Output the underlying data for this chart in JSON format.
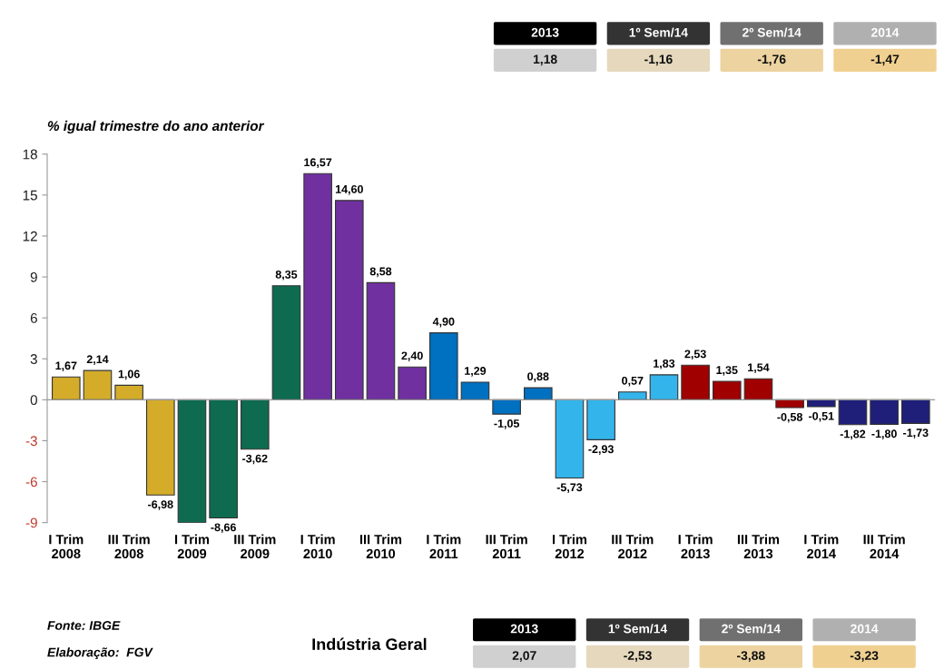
{
  "chart_data": {
    "type": "bar",
    "title": "Indústria Geral",
    "subtitle": "% igual trimestre do ano anterior",
    "categories": [
      "I Trim\n2008",
      null,
      "III Trim\n2008",
      null,
      "I Trim\n2009",
      null,
      "III Trim\n2009",
      null,
      "I Trim\n2010",
      null,
      "III Trim\n2010",
      null,
      "I Trim\n2011",
      null,
      "III Trim\n2011",
      null,
      "I Trim\n2012",
      null,
      "III Trim\n2012",
      null,
      "I Trim\n2013",
      null,
      "III Trim\n2013",
      null,
      "I Trim\n2014",
      null,
      "III Trim\n2014",
      null
    ],
    "values": [
      1.67,
      2.14,
      1.06,
      -6.98,
      -9.0,
      -8.66,
      -3.62,
      8.35,
      16.57,
      14.6,
      8.58,
      2.4,
      4.9,
      1.29,
      -1.05,
      0.88,
      -5.73,
      -2.93,
      0.57,
      1.83,
      2.53,
      1.35,
      1.54,
      -0.58,
      -0.51,
      -1.82,
      -1.8,
      -1.73
    ],
    "value_labels": [
      "1,67",
      "2,14",
      "1,06",
      "-6,98",
      null,
      "-8,66",
      "-3,62",
      "8,35",
      "16,57",
      "14,60",
      "8,58",
      "2,40",
      "4,90",
      "1,29",
      "-1,05",
      "0,88",
      "-5,73",
      "-2,93",
      "0,57",
      "1,83",
      "2,53",
      "1,35",
      "1,54",
      "-0,58",
      "-0,51",
      "-1,82",
      "-1,80",
      "-1,73"
    ],
    "colors": [
      "#d4ac2a",
      "#d4ac2a",
      "#d4ac2a",
      "#d4ac2a",
      "#0e6b50",
      "#0e6b50",
      "#0e6b50",
      "#0e6b50",
      "#7030a0",
      "#7030a0",
      "#7030a0",
      "#7030a0",
      "#0070c0",
      "#0070c0",
      "#0070c0",
      "#0070c0",
      "#33b5ec",
      "#33b5ec",
      "#33b5ec",
      "#33b5ec",
      "#a00000",
      "#a00000",
      "#a00000",
      "#a00000",
      "#1f1f7a",
      "#1f1f7a",
      "#1f1f7a",
      "#1f1f7a"
    ],
    "ylim": [
      -9,
      18
    ],
    "yticks": [
      -9,
      -6,
      -3,
      0,
      3,
      6,
      9,
      12,
      15,
      18
    ],
    "legend": false,
    "annotations": [
      "2013",
      "1º Sem/14",
      "2º Sem/14",
      "2014",
      "1,18",
      "-1,16",
      "-1,76",
      "-1,47",
      "2013",
      "1º Sem/14",
      "2º Sem/14",
      "2014",
      "2,07",
      "-2,53",
      "-3,88",
      "-3,23",
      "Fonte: IBGE",
      "Elaboração:  FGV"
    ]
  }
}
